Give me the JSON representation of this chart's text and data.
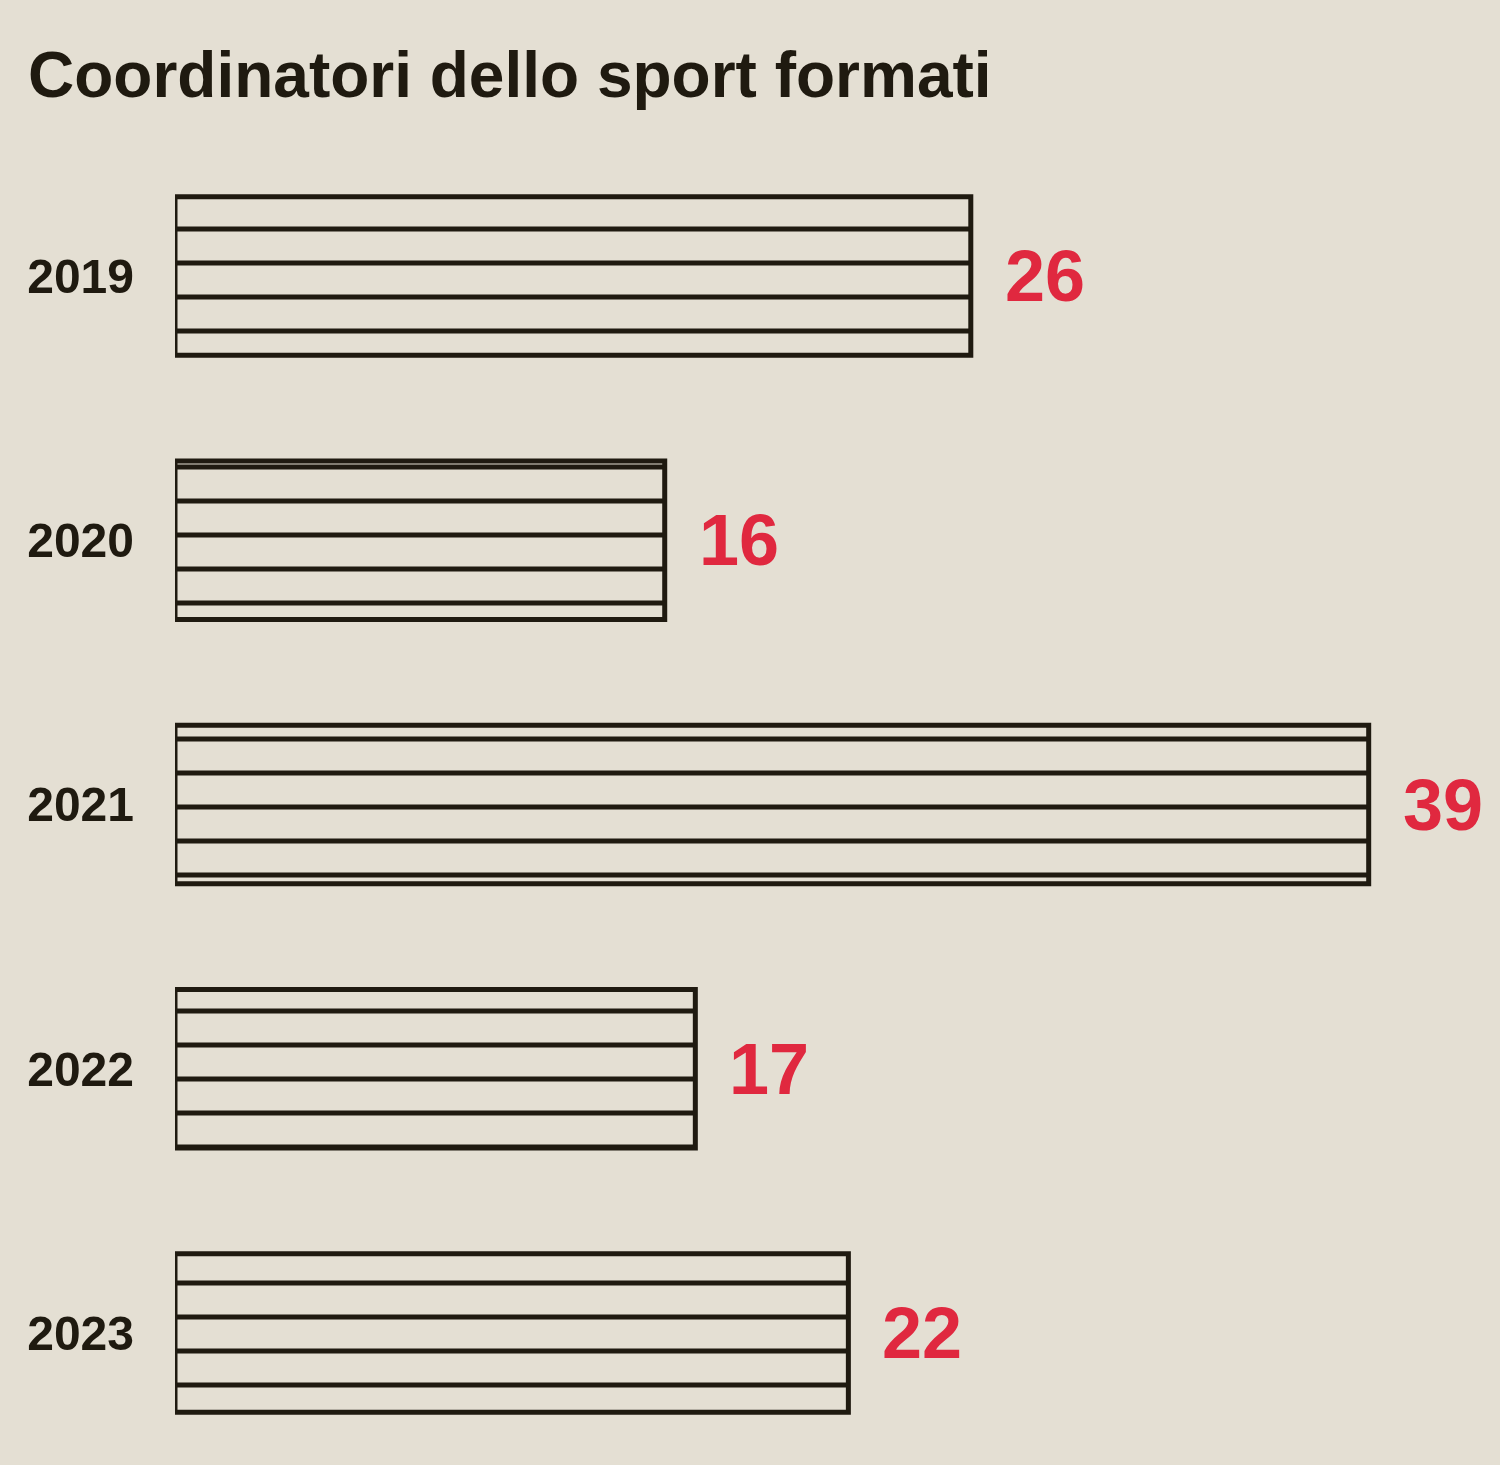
{
  "chart_data": {
    "type": "bar",
    "title": "Coordinatori dello sport formati",
    "categories": [
      "2019",
      "2020",
      "2021",
      "2022",
      "2023"
    ],
    "values": [
      26,
      16,
      39,
      17,
      22
    ],
    "color": "#1f1a10",
    "orientation": "horizontal",
    "data_labels": true,
    "tick_labels": "y"
  }
}
